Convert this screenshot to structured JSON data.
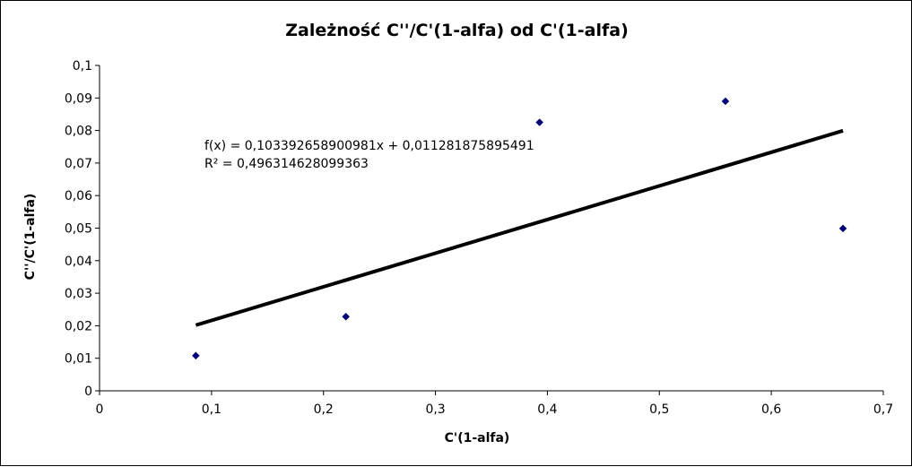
{
  "chart_data": {
    "type": "scatter",
    "title": "Zależność C''/C'(1-alfa) od C'(1-alfa)",
    "xlabel": "C'(1-alfa)",
    "ylabel": "C''/C'(1-alfa)",
    "xlim": [
      0,
      0.7
    ],
    "ylim": [
      0,
      0.1
    ],
    "x_ticks": [
      "0",
      "0,1",
      "0,2",
      "0,3",
      "0,4",
      "0,5",
      "0,6",
      "0,7"
    ],
    "y_ticks": [
      "0",
      "0,01",
      "0,02",
      "0,03",
      "0,04",
      "0,05",
      "0,06",
      "0,07",
      "0,08",
      "0,09",
      "0,1"
    ],
    "grid": false,
    "legend": "none",
    "series": [
      {
        "points": [
          {
            "x": 0.086,
            "y": 0.0108
          },
          {
            "x": 0.22,
            "y": 0.0228
          },
          {
            "x": 0.393,
            "y": 0.0825
          },
          {
            "x": 0.559,
            "y": 0.089
          },
          {
            "x": 0.664,
            "y": 0.0499
          }
        ],
        "color": "#000080",
        "marker": "diamond"
      }
    ],
    "trendline": {
      "type": "linear",
      "slope": 0.103392658900981,
      "intercept": 0.011281875895491,
      "x_range": [
        0.086,
        0.664
      ],
      "color": "#000000",
      "equation_text": "f(x) = 0,103392658900981x + 0,011281875895491",
      "r2_text": "R² = 0,496314628099363"
    }
  }
}
